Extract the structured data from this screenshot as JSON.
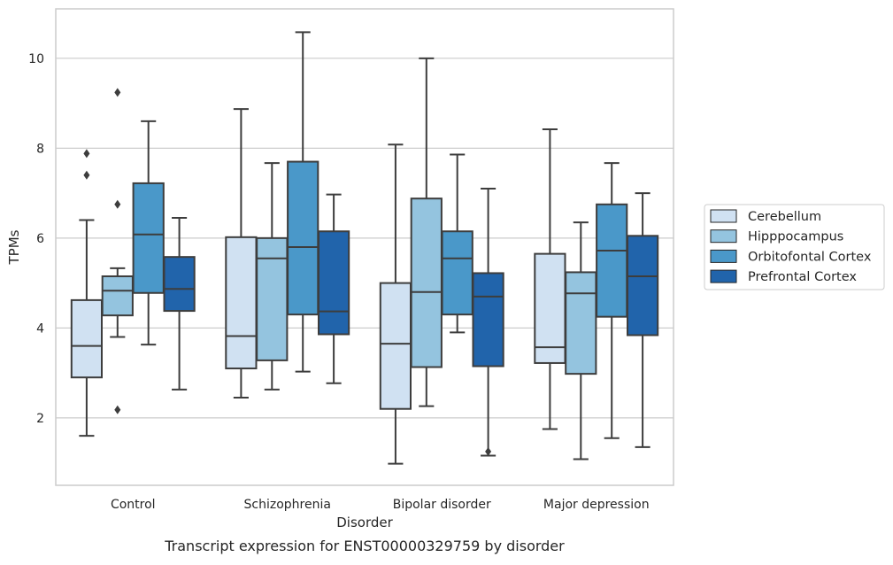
{
  "caption": "Transcript expression for ENST00000329759 by disorder",
  "chart_data": {
    "type": "box",
    "title": "",
    "xlabel": "Disorder",
    "ylabel": "TPMs",
    "ylim": [
      0.5,
      11.1
    ],
    "yticks": [
      2,
      4,
      6,
      8,
      10
    ],
    "grid": "horizontal",
    "legend_position": "right",
    "categories": [
      "Control",
      "Schizophrenia",
      "Bipolar disorder",
      "Major depression"
    ],
    "series": [
      {
        "name": "Cerebellum",
        "color": "#d0e1f2",
        "boxes": [
          {
            "whislo": 1.6,
            "q1": 2.9,
            "med": 3.6,
            "q3": 4.62,
            "whishi": 6.4,
            "fliers": [
              7.4,
              7.88
            ]
          },
          {
            "whislo": 2.45,
            "q1": 3.1,
            "med": 3.82,
            "q3": 6.02,
            "whishi": 8.87,
            "fliers": []
          },
          {
            "whislo": 0.98,
            "q1": 2.2,
            "med": 3.65,
            "q3": 5.0,
            "whishi": 8.08,
            "fliers": []
          },
          {
            "whislo": 1.75,
            "q1": 3.22,
            "med": 3.57,
            "q3": 5.65,
            "whishi": 8.42,
            "fliers": []
          }
        ]
      },
      {
        "name": "Hipppocampus",
        "color": "#94c4df",
        "boxes": [
          {
            "whislo": 3.8,
            "q1": 4.28,
            "med": 4.83,
            "q3": 5.15,
            "whishi": 5.33,
            "fliers": [
              2.18,
              6.75,
              9.24
            ]
          },
          {
            "whislo": 2.63,
            "q1": 3.28,
            "med": 5.55,
            "q3": 6.0,
            "whishi": 7.67,
            "fliers": []
          },
          {
            "whislo": 2.26,
            "q1": 3.13,
            "med": 4.8,
            "q3": 6.88,
            "whishi": 10.0,
            "fliers": []
          },
          {
            "whislo": 1.08,
            "q1": 2.98,
            "med": 4.77,
            "q3": 5.24,
            "whishi": 6.35,
            "fliers": []
          }
        ]
      },
      {
        "name": "Orbitofontal Cortex",
        "color": "#4a98c9",
        "boxes": [
          {
            "whislo": 3.63,
            "q1": 4.78,
            "med": 6.08,
            "q3": 7.22,
            "whishi": 8.6,
            "fliers": []
          },
          {
            "whislo": 3.03,
            "q1": 4.3,
            "med": 5.8,
            "q3": 7.7,
            "whishi": 10.58,
            "fliers": []
          },
          {
            "whislo": 3.9,
            "q1": 4.3,
            "med": 5.55,
            "q3": 6.15,
            "whishi": 7.86,
            "fliers": []
          },
          {
            "whislo": 1.55,
            "q1": 4.25,
            "med": 5.72,
            "q3": 6.75,
            "whishi": 7.67,
            "fliers": []
          }
        ]
      },
      {
        "name": "Prefrontal Cortex",
        "color": "#2164ab",
        "boxes": [
          {
            "whislo": 2.63,
            "q1": 4.38,
            "med": 4.87,
            "q3": 5.58,
            "whishi": 6.45,
            "fliers": []
          },
          {
            "whislo": 2.77,
            "q1": 3.86,
            "med": 4.37,
            "q3": 6.15,
            "whishi": 6.97,
            "fliers": []
          },
          {
            "whislo": 1.16,
            "q1": 3.15,
            "med": 4.7,
            "q3": 5.22,
            "whishi": 7.1,
            "fliers": [
              1.25
            ]
          },
          {
            "whislo": 1.35,
            "q1": 3.84,
            "med": 5.15,
            "q3": 6.05,
            "whishi": 7.0,
            "fliers": []
          }
        ]
      }
    ]
  }
}
